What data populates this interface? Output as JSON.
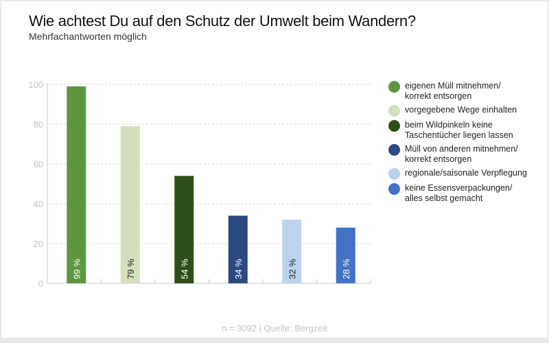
{
  "header": {
    "title": "Wie achtest Du auf den Schutz der Umwelt beim Wandern?",
    "subtitle": "Mehrfachantworten möglich"
  },
  "footer": {
    "source": "n = 3092 | Quelle: Bergzeit"
  },
  "chart_data": {
    "type": "bar",
    "title": "Wie achtest Du auf den Schutz der Umwelt beim Wandern?",
    "subtitle": "Mehrfachantworten möglich",
    "xlabel": "",
    "ylabel": "",
    "ylim": [
      0,
      100
    ],
    "yticks": [
      0,
      20,
      40,
      60,
      80,
      100
    ],
    "ytick_labels": [
      "0",
      "20",
      "40",
      "60",
      "80",
      "100"
    ],
    "grid": true,
    "legend_position": "right",
    "categories": [
      "eigenen Müll mitnehmen/\nkorrekt entsorgen",
      "vorgegebene Wege einhalten",
      "beim Wildpinkeln keine\nTaschentücher liegen lassen",
      "Müll von anderen mitnehmen/\nkorrekt entsorgen",
      "regionale/saisonale Verpflegung",
      "keine Essensverpackungen/\nalles selbst gemacht"
    ],
    "values": [
      99,
      79,
      54,
      34,
      32,
      28
    ],
    "data_labels": [
      "99 %",
      "79 %",
      "54 %",
      "34 %",
      "32 %",
      "28 %"
    ],
    "colors": [
      "#5e9640",
      "#d4dfbe",
      "#2e4f1a",
      "#2c4a82",
      "#bcd3ee",
      "#4472c4"
    ],
    "label_colors": [
      "#ffffff",
      "#222222",
      "#ffffff",
      "#ffffff",
      "#222222",
      "#ffffff"
    ]
  }
}
